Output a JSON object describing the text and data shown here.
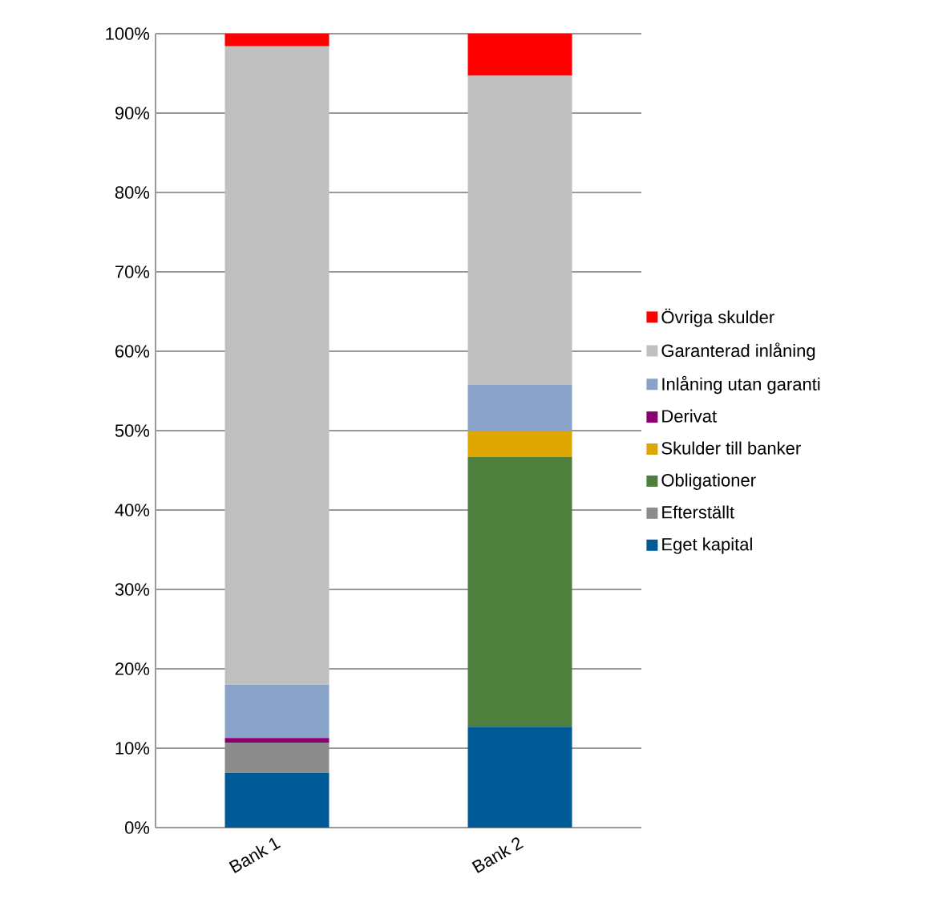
{
  "chart_data": {
    "type": "bar",
    "stacked": true,
    "categories": [
      "Bank 1",
      "Bank 2"
    ],
    "series": [
      {
        "name": "Eget kapital",
        "color": "#005a96",
        "values": [
          6.9,
          12.7
        ]
      },
      {
        "name": "Efterställt",
        "color": "#8c8c8c",
        "values": [
          3.8,
          0
        ]
      },
      {
        "name": "Obligationer",
        "color": "#4f7f3c",
        "values": [
          0,
          34.0
        ]
      },
      {
        "name": "Skulder till banker",
        "color": "#dda600",
        "values": [
          0,
          3.2
        ]
      },
      {
        "name": "Derivat",
        "color": "#8b0070",
        "values": [
          0.6,
          0
        ]
      },
      {
        "name": "Inlåning utan garanti",
        "color": "#88a2c8",
        "values": [
          6.7,
          5.9
        ]
      },
      {
        "name": "Garanterad inlåning",
        "color": "#c0c0c0",
        "values": [
          80.4,
          38.9
        ]
      },
      {
        "name": "Övriga skulder",
        "color": "#ff0000",
        "values": [
          1.6,
          5.3
        ]
      }
    ],
    "ylim": [
      0,
      100
    ],
    "yticks": [
      {
        "value": 0,
        "label": "0%"
      },
      {
        "value": 10,
        "label": "10%"
      },
      {
        "value": 20,
        "label": "20%"
      },
      {
        "value": 30,
        "label": "30%"
      },
      {
        "value": 40,
        "label": "40%"
      },
      {
        "value": 50,
        "label": "50%"
      },
      {
        "value": 60,
        "label": "60%"
      },
      {
        "value": 70,
        "label": "70%"
      },
      {
        "value": 80,
        "label": "80%"
      },
      {
        "value": 90,
        "label": "90%"
      },
      {
        "value": 100,
        "label": "100%"
      }
    ],
    "grid": "y",
    "legend": "right"
  }
}
